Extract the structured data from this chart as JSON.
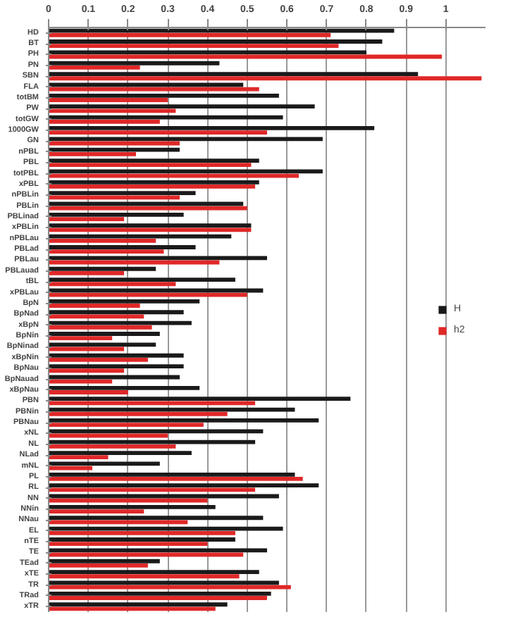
{
  "chart_data": {
    "type": "bar",
    "orientation": "horizontal",
    "categories": [
      "HD",
      "BT",
      "PH",
      "PN",
      "SBN",
      "FLA",
      "totBM",
      "PW",
      "totGW",
      "1000GW",
      "GN",
      "nPBL",
      "PBL",
      "totPBL",
      "xPBL",
      "nPBLin",
      "PBLin",
      "PBLinad",
      "xPBLin",
      "nPBLau",
      "PBLad",
      "PBLau",
      "PBLauad",
      "tBL",
      "xPBLau",
      "BpN",
      "BpNad",
      "xBpN",
      "BpNin",
      "BpNinad",
      "xBpNin",
      "BpNau",
      "BpNauad",
      "xBpNau",
      "PBN",
      "PBNin",
      "PBNau",
      "xNL",
      "NL",
      "NLad",
      "mNL",
      "PL",
      "RL",
      "NN",
      "NNin",
      "NNau",
      "EL",
      "nTE",
      "TE",
      "TEad",
      "xTE",
      "TR",
      "TRad",
      "xTR"
    ],
    "series": [
      {
        "name": "H",
        "color": "#1a1a1a",
        "values": [
          0.87,
          0.84,
          0.8,
          0.43,
          0.93,
          0.49,
          0.58,
          0.67,
          0.59,
          0.82,
          0.69,
          0.33,
          0.53,
          0.69,
          0.53,
          0.37,
          0.49,
          0.34,
          0.51,
          0.46,
          0.37,
          0.55,
          0.27,
          0.47,
          0.54,
          0.38,
          0.34,
          0.36,
          0.28,
          0.27,
          0.34,
          0.34,
          0.33,
          0.38,
          0.76,
          0.62,
          0.68,
          0.54,
          0.52,
          0.36,
          0.28,
          0.62,
          0.68,
          0.58,
          0.42,
          0.54,
          0.59,
          0.47,
          0.55,
          0.28,
          0.53,
          0.58,
          0.56,
          0.45
        ]
      },
      {
        "name": "h2",
        "color": "#e02828",
        "values": [
          0.71,
          0.73,
          0.99,
          0.23,
          1.09,
          0.53,
          0.3,
          0.32,
          0.28,
          0.55,
          0.33,
          0.22,
          0.51,
          0.63,
          0.52,
          0.33,
          0.5,
          0.19,
          0.51,
          0.27,
          0.29,
          0.43,
          0.19,
          0.32,
          0.5,
          0.23,
          0.24,
          0.26,
          0.16,
          0.19,
          0.25,
          0.19,
          0.16,
          0.2,
          0.52,
          0.45,
          0.39,
          0.3,
          0.32,
          0.15,
          0.11,
          0.64,
          0.52,
          0.4,
          0.24,
          0.35,
          0.47,
          0.4,
          0.49,
          0.25,
          0.48,
          0.61,
          0.55,
          0.42
        ]
      }
    ],
    "xlim": [
      0,
      1.1
    ],
    "xticks": [
      0,
      0.1,
      0.2,
      0.3,
      0.4,
      0.5,
      0.6,
      0.7,
      0.8,
      0.9,
      1
    ],
    "grid": "x",
    "legend": "right"
  }
}
